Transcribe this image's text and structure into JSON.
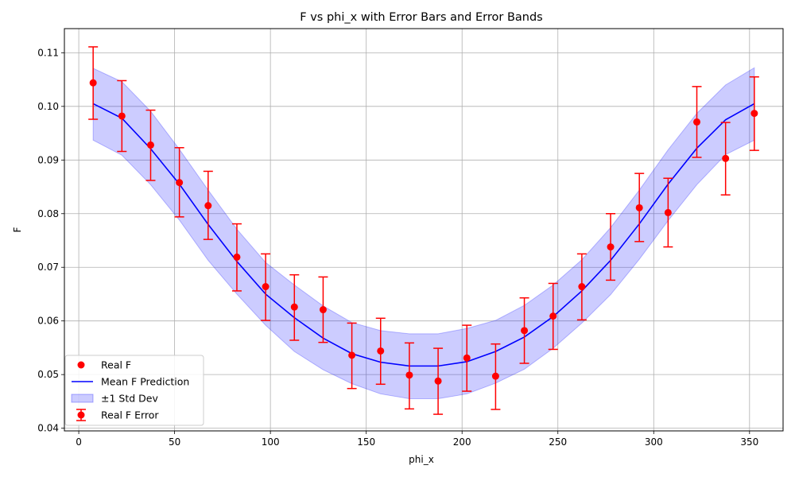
{
  "chart_data": {
    "type": "line",
    "title": "F vs phi_x with Error Bars and Error Bands",
    "xlabel": "phi_x",
    "ylabel": "F",
    "xlim": [
      -7.5,
      367.5
    ],
    "ylim": [
      0.0395,
      0.1145
    ],
    "xticks": [
      "0",
      "50",
      "100",
      "150",
      "200",
      "250",
      "300",
      "350"
    ],
    "yticks": [
      "0.04",
      "0.05",
      "0.06",
      "0.07",
      "0.08",
      "0.09",
      "0.10",
      "0.11"
    ],
    "grid": true,
    "legend_position": "lower-left",
    "x": [
      7.5,
      22.5,
      37.5,
      52.5,
      67.5,
      82.5,
      97.5,
      112.5,
      127.5,
      142.5,
      157.5,
      172.5,
      187.5,
      202.5,
      217.5,
      232.5,
      247.5,
      262.5,
      277.5,
      292.5,
      307.5,
      322.5,
      337.5,
      352.5
    ],
    "series": [
      {
        "name": "Real F",
        "kind": "scatter",
        "color": "#ff0000",
        "values": [
          0.1044,
          0.0982,
          0.0928,
          0.0858,
          0.0815,
          0.0719,
          0.0664,
          0.0626,
          0.0621,
          0.0536,
          0.0544,
          0.0499,
          0.0488,
          0.0531,
          0.0497,
          0.0582,
          0.0609,
          0.0664,
          0.0738,
          0.0811,
          0.0802,
          0.0971,
          0.0903,
          0.0987
        ],
        "error_low": [
          0.0976,
          0.0916,
          0.0862,
          0.0794,
          0.0752,
          0.0656,
          0.0601,
          0.0564,
          0.056,
          0.0474,
          0.0482,
          0.0436,
          0.0426,
          0.0469,
          0.0435,
          0.0521,
          0.0547,
          0.0602,
          0.0676,
          0.0748,
          0.0738,
          0.0905,
          0.0835,
          0.0918
        ],
        "error_high": [
          0.1111,
          0.1048,
          0.0993,
          0.0923,
          0.0879,
          0.0781,
          0.0725,
          0.0686,
          0.0682,
          0.0596,
          0.0605,
          0.0559,
          0.0549,
          0.0592,
          0.0557,
          0.0643,
          0.067,
          0.0725,
          0.08,
          0.0875,
          0.0866,
          0.1037,
          0.097,
          0.1055
        ]
      },
      {
        "name": "Mean F Prediction",
        "kind": "line",
        "color": "#0000ff",
        "values": [
          0.1005,
          0.0978,
          0.0921,
          0.0855,
          0.078,
          0.0711,
          0.065,
          0.0606,
          0.0568,
          0.0539,
          0.0523,
          0.0516,
          0.0516,
          0.0524,
          0.0543,
          0.057,
          0.0608,
          0.0656,
          0.0713,
          0.0781,
          0.0855,
          0.0922,
          0.0975,
          0.1005
        ]
      },
      {
        "name": "±1 Std Dev",
        "kind": "band",
        "color": "#0000ff",
        "lower": [
          0.0937,
          0.0909,
          0.0854,
          0.0788,
          0.0713,
          0.065,
          0.0592,
          0.0543,
          0.0509,
          0.0483,
          0.0464,
          0.0455,
          0.0455,
          0.0464,
          0.0484,
          0.051,
          0.0549,
          0.0596,
          0.0649,
          0.0715,
          0.0787,
          0.0854,
          0.091,
          0.0937
        ],
        "upper": [
          0.1071,
          0.1046,
          0.0991,
          0.092,
          0.0844,
          0.0771,
          0.0709,
          0.0667,
          0.0628,
          0.0597,
          0.0582,
          0.0576,
          0.0576,
          0.0586,
          0.0601,
          0.0629,
          0.0667,
          0.0714,
          0.0774,
          0.0844,
          0.0919,
          0.0987,
          0.104,
          0.1072
        ]
      }
    ],
    "legend": [
      {
        "label": "Real F",
        "marker": "dot",
        "color": "#ff0000"
      },
      {
        "label": "Mean F Prediction",
        "marker": "line",
        "color": "#0000ff"
      },
      {
        "label": "±1 Std Dev",
        "marker": "patch",
        "color": "#0000ff"
      },
      {
        "label": "Real F Error",
        "marker": "errorbar",
        "color": "#ff0000"
      }
    ]
  }
}
